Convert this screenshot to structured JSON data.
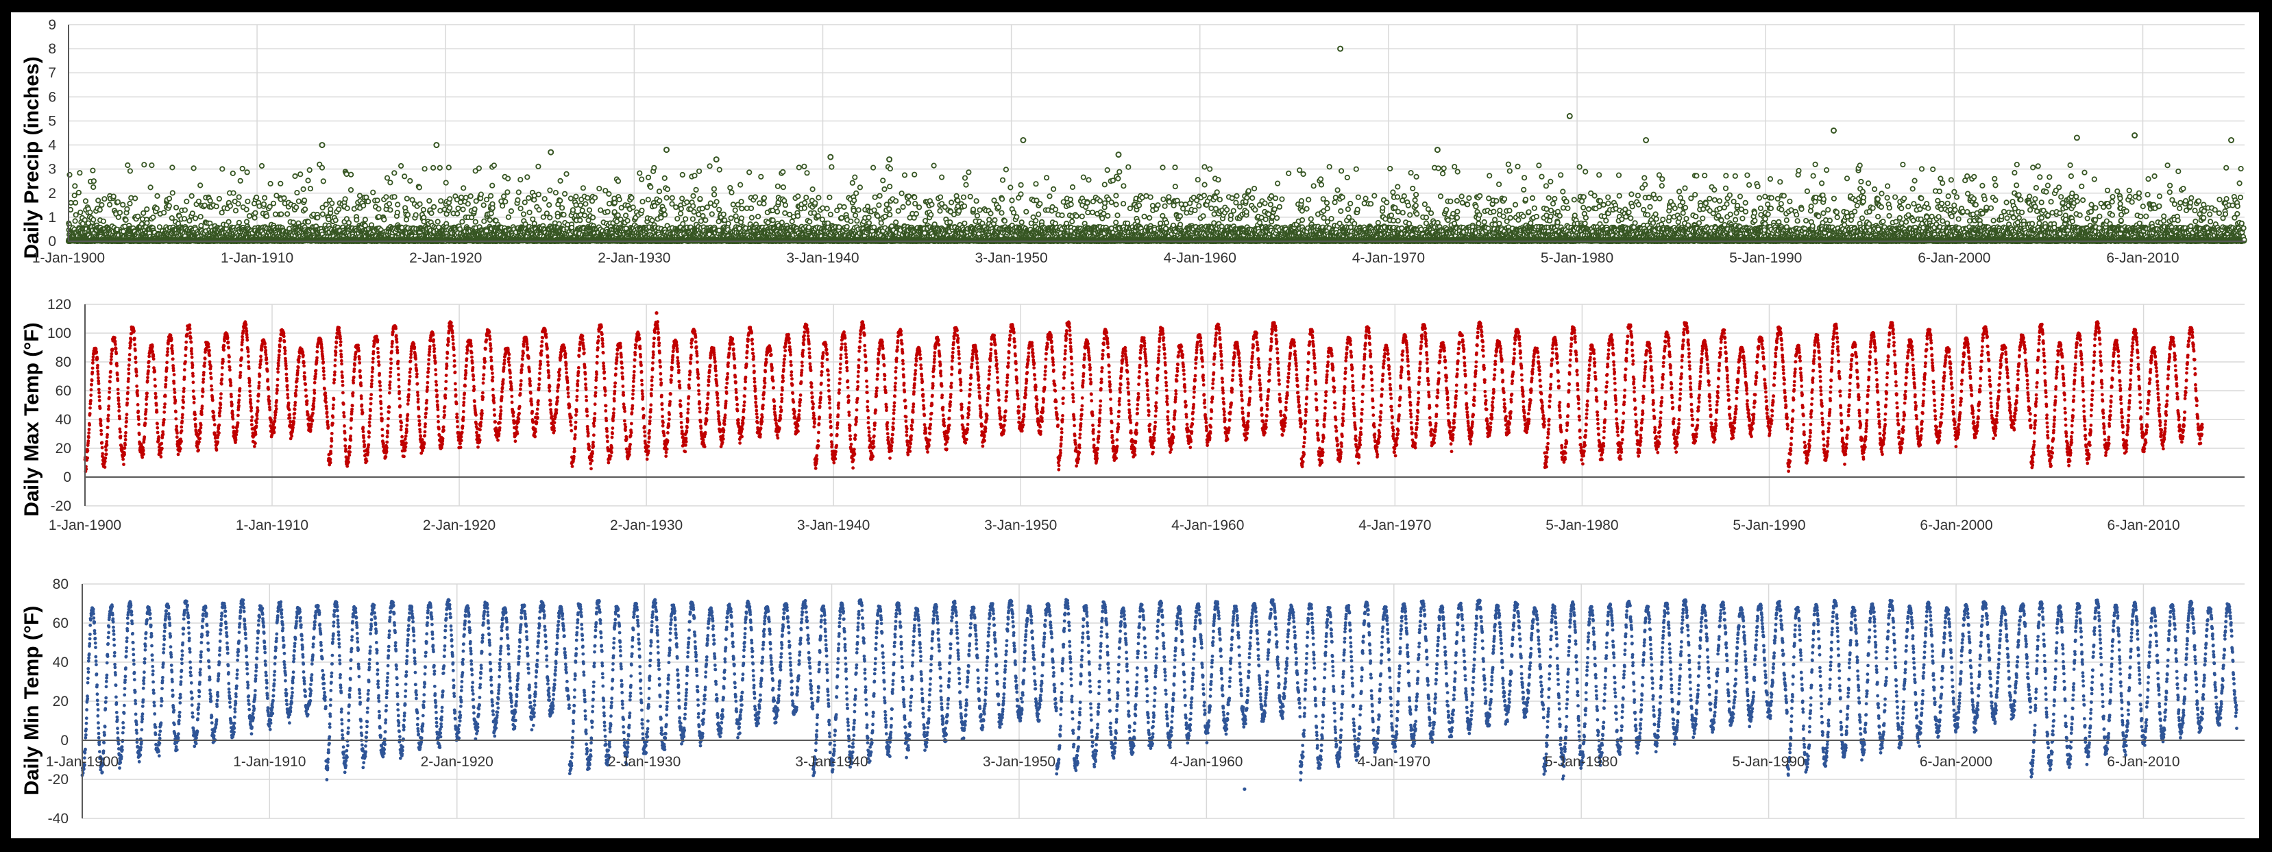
{
  "chart_data": [
    {
      "type": "scatter",
      "ylabel": "Daily Precip (inches)",
      "xlabel": "",
      "title": "",
      "ylim": [
        0,
        9
      ],
      "yticks": [
        0,
        1,
        2,
        3,
        4,
        5,
        6,
        7,
        8,
        9
      ],
      "xlim": [
        "1900-01-01",
        "2015-06-01"
      ],
      "xtick_labels": [
        "1-Jan-1900",
        "1-Jan-1910",
        "2-Jan-1920",
        "2-Jan-1930",
        "3-Jan-1940",
        "3-Jan-1950",
        "4-Jan-1960",
        "4-Jan-1970",
        "5-Jan-1980",
        "5-Jan-1990",
        "6-Jan-2000",
        "6-Jan-2010"
      ],
      "xtick_dates": [
        "1900-01-01",
        "1910-01-01",
        "1920-01-02",
        "1930-01-02",
        "1940-01-03",
        "1950-01-03",
        "1960-01-04",
        "1970-01-04",
        "1980-01-05",
        "1990-01-05",
        "2000-01-06",
        "2010-01-06"
      ],
      "marker": "hollow-circle",
      "color": "#375623",
      "grid": true,
      "highlight_points": [
        {
          "x": "1913-06-15",
          "y": 4.0
        },
        {
          "x": "1919-07-10",
          "y": 4.0
        },
        {
          "x": "1925-08-01",
          "y": 3.7
        },
        {
          "x": "1931-09-20",
          "y": 3.8
        },
        {
          "x": "1934-05-12",
          "y": 3.4
        },
        {
          "x": "1940-06-01",
          "y": 3.5
        },
        {
          "x": "1943-07-15",
          "y": 3.4
        },
        {
          "x": "1950-08-20",
          "y": 4.2
        },
        {
          "x": "1955-09-10",
          "y": 3.6
        },
        {
          "x": "1967-06-15",
          "y": 8.0
        },
        {
          "x": "1972-08-10",
          "y": 3.8
        },
        {
          "x": "1979-08-15",
          "y": 5.2
        },
        {
          "x": "1983-09-01",
          "y": 4.2
        },
        {
          "x": "1993-08-15",
          "y": 4.6
        },
        {
          "x": "2006-07-10",
          "y": 4.3
        },
        {
          "x": "2009-08-01",
          "y": 4.4
        },
        {
          "x": "2014-09-15",
          "y": 4.2
        }
      ]
    },
    {
      "type": "scatter",
      "ylabel": "Daily Max Temp (°F)",
      "xlabel": "",
      "title": "",
      "ylim": [
        -20,
        120
      ],
      "yticks": [
        -20,
        0,
        20,
        40,
        60,
        80,
        100,
        120
      ],
      "xlim": [
        "1900-01-01",
        "2015-06-01"
      ],
      "xtick_labels": [
        "1-Jan-1900",
        "1-Jan-1910",
        "2-Jan-1920",
        "2-Jan-1930",
        "3-Jan-1940",
        "3-Jan-1950",
        "4-Jan-1960",
        "4-Jan-1970",
        "5-Jan-1980",
        "5-Jan-1990",
        "6-Jan-2000",
        "6-Jan-2010"
      ],
      "xtick_dates": [
        "1900-01-01",
        "1910-01-01",
        "1920-01-02",
        "1930-01-02",
        "1940-01-03",
        "1950-01-03",
        "1960-01-04",
        "1970-01-04",
        "1980-01-05",
        "1990-01-05",
        "2000-01-06",
        "2010-01-06"
      ],
      "marker": "filled-dot",
      "color": "#c00000",
      "tick_color": "#c00000",
      "grid": true,
      "seasonal_range": {
        "summer_high": [
          90,
          108
        ],
        "winter_low": [
          10,
          35
        ]
      },
      "record_high": {
        "x": "1930-07-20",
        "y": 114
      },
      "data_end": "2013-03-01"
    },
    {
      "type": "scatter",
      "ylabel": "Daily Min Temp (°F)",
      "xlabel": "",
      "title": "",
      "ylim": [
        -40,
        80
      ],
      "yticks": [
        -40,
        -20,
        0,
        20,
        40,
        60,
        80
      ],
      "xlim": [
        "1900-01-01",
        "2015-06-01"
      ],
      "xtick_labels": [
        "1-Jan-1900",
        "1-Jan-1910",
        "2-Jan-1920",
        "2-Jan-1930",
        "3-Jan-1940",
        "3-Jan-1950",
        "4-Jan-1960",
        "4-Jan-1970",
        "5-Jan-1980",
        "5-Jan-1990",
        "6-Jan-2000",
        "6-Jan-2010"
      ],
      "xtick_dates": [
        "1900-01-01",
        "1910-01-01",
        "1920-01-02",
        "1930-01-02",
        "1940-01-03",
        "1950-01-03",
        "1960-01-04",
        "1970-01-04",
        "1980-01-05",
        "1990-01-05",
        "2000-01-06",
        "2010-01-06"
      ],
      "marker": "filled-dot",
      "color": "#2f5597",
      "tick_color": "#333333",
      "grid": true,
      "seasonal_range": {
        "summer_high": [
          68,
          72
        ],
        "winter_low": [
          -15,
          15
        ]
      },
      "record_low": {
        "x": "1962-01-15",
        "y": -25
      },
      "data_end": "2014-12-31"
    }
  ]
}
